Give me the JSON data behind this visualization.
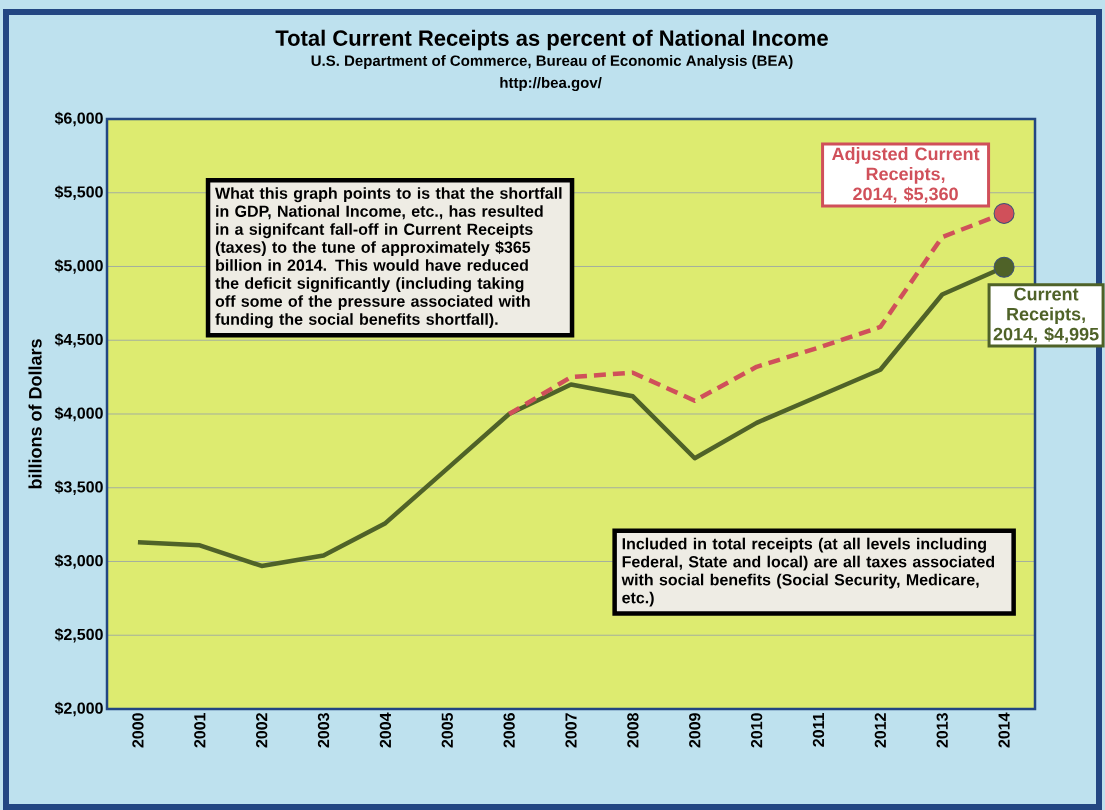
{
  "chart_data": {
    "type": "line",
    "title": "Total Current Receipts as percent of National Income",
    "subtitle": "U.S. Department of Commerce, Bureau of Economic Analysis (BEA)",
    "ylabel": "billions of Dollars",
    "categories": [
      "2000",
      "2001",
      "2002",
      "2003",
      "2004",
      "2005",
      "2006",
      "2007",
      "2008",
      "2009",
      "2010",
      "2011",
      "2012",
      "2013",
      "2014"
    ],
    "series": [
      {
        "color": "#4f6228",
        "line_style": "solid",
        "values": [
          3130,
          3110,
          2970,
          3040,
          3260,
          3630,
          4000,
          4200,
          4120,
          3700,
          3940,
          4120,
          4300,
          4810,
          4995
        ]
      },
      {
        "color": "#d0505a",
        "line_style": "dashed",
        "values": [
          null,
          null,
          null,
          null,
          null,
          null,
          4000,
          4250,
          4280,
          4090,
          4320,
          4450,
          4590,
          5200,
          5360
        ]
      }
    ],
    "ylim": [
      2000,
      6000
    ],
    "yticks": [
      {
        "value": 2000,
        "label": "$2,000"
      },
      {
        "value": 2500,
        "label": "$2,500"
      },
      {
        "value": 3000,
        "label": "$3,000"
      },
      {
        "value": 3500,
        "label": "$3,500"
      },
      {
        "value": 4000,
        "label": "$4,000"
      },
      {
        "value": 4500,
        "label": "$4,500"
      },
      {
        "value": 5000,
        "label": "$5,000"
      },
      {
        "value": 5500,
        "label": "$5,500"
      },
      {
        "value": 6000,
        "label": "$6,000"
      }
    ],
    "grid": "y",
    "annotations": [
      "http://bea.gov/",
      "What this graph points to is that the shortfall in GDP, National Income, etc., has resulted in a signifcant fall-off in  Current Receipts (taxes) to the tune of approximately $365 billion in 2014.  This would have reduced the deficit significantly (including taking off some of the pressure associated with funding the social benefits shortfall).",
      "Included in total receipts (at all levels including Federal, State and local) are all taxes associated with social benefits (Social Security, Medicare, etc.)",
      {
        "text": "Adjusted Current Receipts, 2014, $5,360",
        "x": "2014",
        "y": 5360
      },
      {
        "text": "Current Receipts, 2014,  $4,995",
        "x": "2014",
        "y": 4995
      }
    ]
  }
}
